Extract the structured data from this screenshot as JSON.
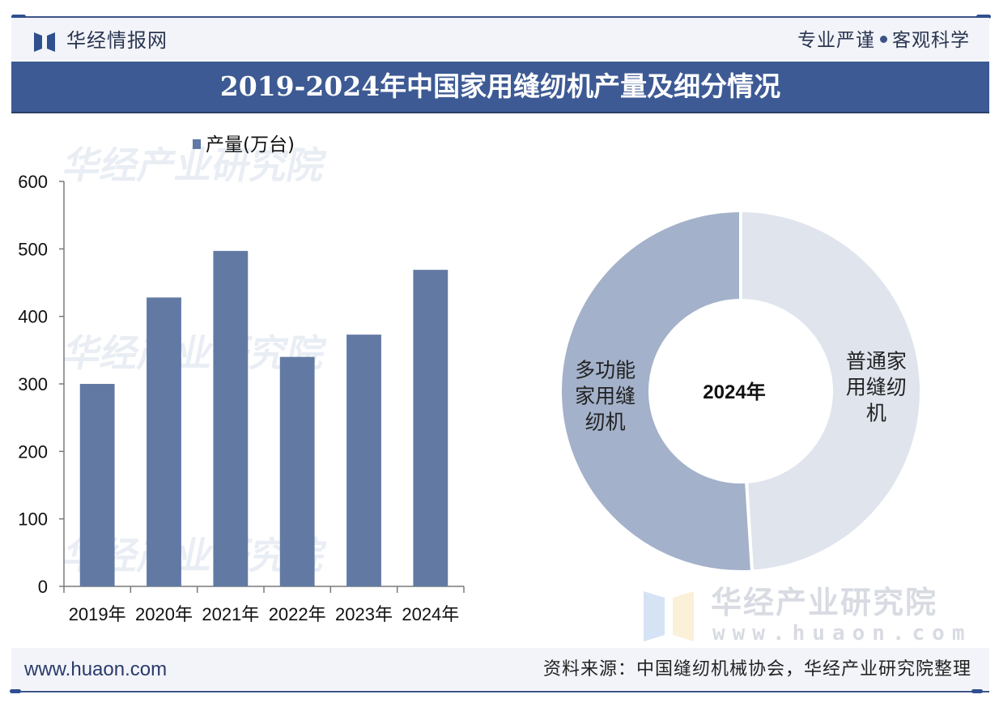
{
  "header": {
    "brand": "华经情报网",
    "slogan_left": "专业严谨",
    "slogan_right": "客观科学"
  },
  "title": "2019-2024年中国家用缝纫机产量及细分情况",
  "colors": {
    "brand_blue": "#3d5a94",
    "bar": "#6279a3",
    "donut_multi": "#a3b1ca",
    "donut_regular": "#dfe4ed"
  },
  "chart_data": [
    {
      "type": "bar",
      "title": "",
      "legend": [
        "产量(万台)"
      ],
      "legend_position": "top",
      "categories": [
        "2019年",
        "2020年",
        "2021年",
        "2022年",
        "2023年",
        "2024年"
      ],
      "series": [
        {
          "name": "产量(万台)",
          "values": [
            300,
            428,
            497,
            340,
            373,
            469
          ]
        }
      ],
      "xlabel": "",
      "ylabel": "",
      "ylim": [
        0,
        600
      ],
      "yticks": [
        0,
        100,
        200,
        300,
        400,
        500,
        600
      ],
      "grid": false
    },
    {
      "type": "pie",
      "variant": "donut",
      "center_label": "2024年",
      "slices": [
        {
          "label": "普通家用缝纫机",
          "label_lines": [
            "普通家",
            "用缝纫",
            "机"
          ],
          "value": 49
        },
        {
          "label": "多功能家用缝纫机",
          "label_lines": [
            "多功能",
            "家用缝",
            "纫机"
          ],
          "value": 51
        }
      ],
      "unit": "%"
    }
  ],
  "watermark": {
    "name": "华经产业研究院",
    "url": "www.huaon.com"
  },
  "footer": {
    "website": "www.huaon.com",
    "source": "资料来源：中国缝纫机械协会，华经产业研究院整理"
  }
}
